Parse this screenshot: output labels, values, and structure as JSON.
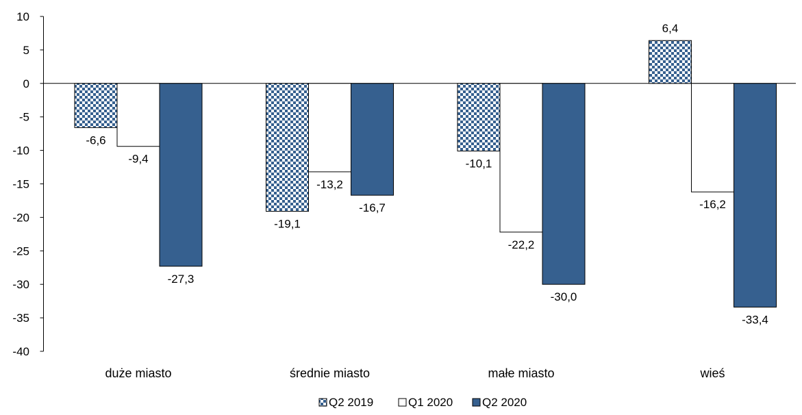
{
  "chart_data": {
    "type": "bar",
    "categories": [
      "duże miasto",
      "średnie miasto",
      "małe miasto",
      "wieś"
    ],
    "series": [
      {
        "name": "Q2 2019",
        "values": [
          -6.6,
          -19.1,
          -10.1,
          6.4
        ],
        "labels": [
          "-6,6",
          "-19,1",
          "-10,1",
          "6,4"
        ],
        "fill": "checker"
      },
      {
        "name": "Q1 2020",
        "values": [
          -9.4,
          -13.2,
          -22.2,
          -16.2
        ],
        "labels": [
          "-9,4",
          "-13,2",
          "-22,2",
          "-16,2"
        ],
        "fill": "#ffffff"
      },
      {
        "name": "Q2 2020",
        "values": [
          -27.3,
          -16.7,
          -30.0,
          -33.4
        ],
        "labels": [
          "-27,3",
          "-16,7",
          "-30,0",
          "-33,4"
        ],
        "fill": "#36608f"
      }
    ],
    "ylim": [
      -40,
      10
    ],
    "yticks": [
      10,
      5,
      0,
      -5,
      -10,
      -15,
      -20,
      -25,
      -30,
      -35,
      -40
    ],
    "ytick_labels": [
      "10",
      "5",
      "0",
      "-5",
      "-10",
      "-15",
      "-20",
      "-25",
      "-30",
      "-35",
      "-40"
    ],
    "grid": false,
    "legend_position": "bottom",
    "colors": {
      "dark": "#36608f",
      "outline": "#000000",
      "checker_dark": "#36608f",
      "checker_light": "#ffffff"
    }
  }
}
